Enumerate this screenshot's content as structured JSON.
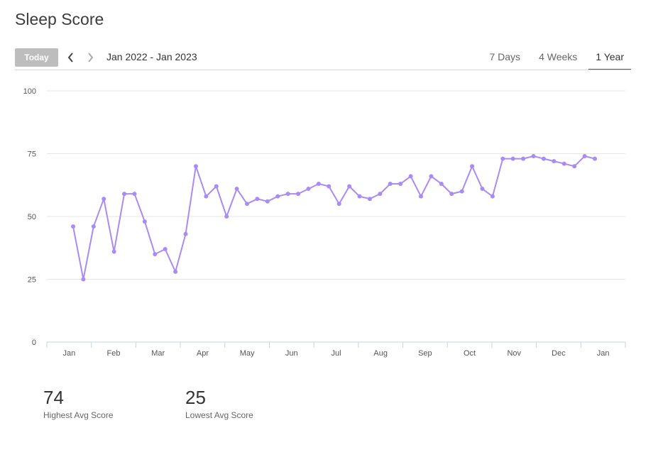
{
  "page": {
    "title": "Sleep Score"
  },
  "toolbar": {
    "today_label": "Today",
    "range_label": "Jan 2022 - Jan 2023"
  },
  "tabs": [
    {
      "label": "7 Days",
      "active": false
    },
    {
      "label": "4 Weeks",
      "active": false
    },
    {
      "label": "1 Year",
      "active": true
    }
  ],
  "colors": {
    "line": "#a98bf5",
    "grid": "#e6e6e6",
    "axis": "#c9d3e3",
    "tab_active": "#1e6bb8",
    "today_bg": "#bdbdbd"
  },
  "stats": [
    {
      "value": "74",
      "label": "Highest Avg Score"
    },
    {
      "value": "25",
      "label": "Lowest Avg Score"
    }
  ],
  "chart_data": {
    "type": "line",
    "title": "",
    "xlabel": "",
    "ylabel": "",
    "ylim": [
      0,
      100
    ],
    "yticks": [
      0,
      25,
      50,
      75,
      100
    ],
    "months": [
      "Jan",
      "Feb",
      "Mar",
      "Apr",
      "May",
      "Jun",
      "Jul",
      "Aug",
      "Sep",
      "Oct",
      "Nov",
      "Dec",
      "Jan"
    ],
    "grid": true,
    "series": [
      {
        "values": [
          46,
          25,
          46,
          57,
          36,
          59,
          59,
          48,
          35,
          37,
          28,
          43,
          70,
          58,
          62,
          50,
          61,
          55,
          57,
          56,
          58,
          59,
          59,
          61,
          63,
          62,
          55,
          62,
          58,
          57,
          59,
          63,
          63,
          66,
          58,
          66,
          63,
          59,
          60,
          70,
          61,
          58,
          73,
          73,
          73,
          74,
          73,
          72,
          71,
          70,
          74,
          73
        ]
      }
    ]
  }
}
